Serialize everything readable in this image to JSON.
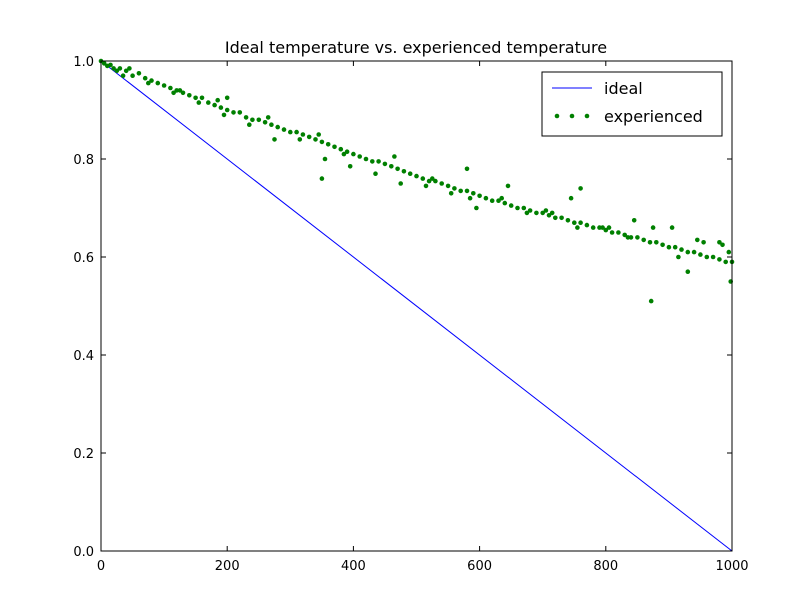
{
  "chart_data": {
    "type": "line",
    "title": "Ideal temperature vs. experienced temperature",
    "xlabel": "",
    "ylabel": "",
    "xlim": [
      0,
      1000
    ],
    "ylim": [
      0.0,
      1.0
    ],
    "x_ticks": [
      "0",
      "200",
      "400",
      "600",
      "800",
      "1000"
    ],
    "y_ticks": [
      "0.0",
      "0.2",
      "0.4",
      "0.6",
      "0.8",
      "1.0"
    ],
    "grid": false,
    "legend_position": "top-right",
    "series": [
      {
        "name": "ideal",
        "kind": "line",
        "color": "#0000ff",
        "x": [
          0,
          1000
        ],
        "y": [
          1.0,
          0.0
        ]
      },
      {
        "name": "experienced",
        "kind": "scatter",
        "color": "#008000",
        "x": [
          0,
          5,
          10,
          15,
          20,
          25,
          30,
          40,
          50,
          60,
          70,
          80,
          90,
          100,
          110,
          120,
          130,
          140,
          150,
          160,
          170,
          180,
          190,
          200,
          210,
          220,
          230,
          240,
          250,
          260,
          270,
          280,
          290,
          300,
          310,
          320,
          330,
          340,
          350,
          360,
          370,
          380,
          390,
          400,
          410,
          420,
          430,
          440,
          450,
          460,
          470,
          480,
          490,
          500,
          510,
          520,
          530,
          540,
          550,
          560,
          570,
          580,
          590,
          600,
          610,
          620,
          630,
          640,
          650,
          660,
          670,
          680,
          690,
          700,
          710,
          720,
          730,
          740,
          750,
          760,
          770,
          780,
          790,
          800,
          810,
          820,
          830,
          840,
          850,
          860,
          870,
          880,
          890,
          900,
          910,
          920,
          930,
          940,
          950,
          960,
          970,
          980,
          990,
          1000,
          35,
          75,
          115,
          155,
          195,
          235,
          275,
          315,
          355,
          395,
          435,
          475,
          515,
          555,
          595,
          635,
          675,
          715,
          755,
          795,
          835,
          875,
          915,
          955,
          995,
          45,
          125,
          185,
          265,
          345,
          385,
          465,
          525,
          585,
          645,
          705,
          745,
          805,
          845,
          905,
          945,
          985,
          200,
          350,
          580,
          760,
          872,
          930,
          980,
          998
        ],
        "y": [
          1.0,
          0.995,
          0.99,
          0.992,
          0.985,
          0.98,
          0.985,
          0.98,
          0.97,
          0.975,
          0.965,
          0.96,
          0.955,
          0.95,
          0.945,
          0.94,
          0.935,
          0.93,
          0.925,
          0.925,
          0.915,
          0.91,
          0.905,
          0.9,
          0.895,
          0.895,
          0.885,
          0.88,
          0.88,
          0.875,
          0.87,
          0.865,
          0.86,
          0.855,
          0.855,
          0.85,
          0.845,
          0.84,
          0.835,
          0.83,
          0.825,
          0.82,
          0.815,
          0.81,
          0.805,
          0.8,
          0.795,
          0.795,
          0.79,
          0.785,
          0.78,
          0.775,
          0.77,
          0.765,
          0.76,
          0.755,
          0.755,
          0.75,
          0.745,
          0.74,
          0.735,
          0.735,
          0.73,
          0.725,
          0.72,
          0.715,
          0.715,
          0.71,
          0.705,
          0.7,
          0.7,
          0.695,
          0.69,
          0.69,
          0.685,
          0.68,
          0.68,
          0.675,
          0.67,
          0.67,
          0.665,
          0.66,
          0.66,
          0.655,
          0.65,
          0.65,
          0.645,
          0.64,
          0.64,
          0.635,
          0.63,
          0.63,
          0.625,
          0.62,
          0.62,
          0.615,
          0.61,
          0.61,
          0.605,
          0.6,
          0.6,
          0.595,
          0.59,
          0.59,
          0.97,
          0.955,
          0.935,
          0.915,
          0.89,
          0.87,
          0.84,
          0.84,
          0.8,
          0.785,
          0.77,
          0.75,
          0.745,
          0.73,
          0.7,
          0.72,
          0.69,
          0.69,
          0.66,
          0.66,
          0.64,
          0.66,
          0.6,
          0.63,
          0.61,
          0.985,
          0.94,
          0.92,
          0.885,
          0.85,
          0.81,
          0.805,
          0.76,
          0.72,
          0.745,
          0.695,
          0.72,
          0.66,
          0.675,
          0.66,
          0.635,
          0.625,
          0.925,
          0.76,
          0.78,
          0.74,
          0.51,
          0.57,
          0.63,
          0.55
        ]
      }
    ]
  }
}
